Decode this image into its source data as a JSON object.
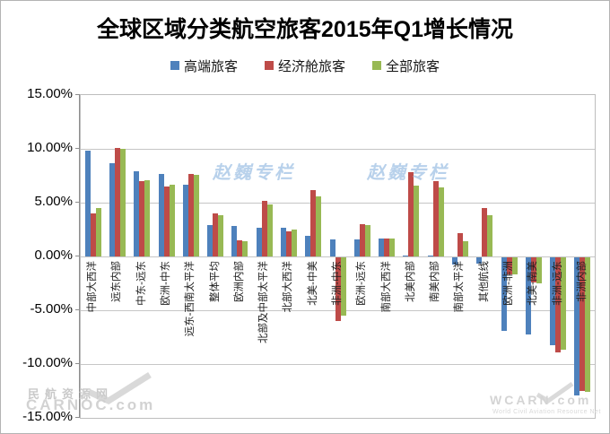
{
  "window": {
    "title": "全球区域分类航空旅客2015年Q1增长情况"
  },
  "chart_data": {
    "type": "bar",
    "title": "全球区域分类航空旅客2015年Q1增长情况",
    "xlabel": "",
    "ylabel": "",
    "ylim": [
      -15,
      15
    ],
    "y_step": 5,
    "grid": true,
    "legend_position": "top",
    "y_ticks": [
      "15.00%",
      "10.00%",
      "5.00%",
      "0.00%",
      "-5.00%",
      "-10.00%",
      "-15.00%"
    ],
    "categories": [
      "中部大西洋",
      "远东内部",
      "中东-远东",
      "欧洲-中东",
      "远东-西南太平洋",
      "整体平均",
      "欧洲内部",
      "北部及中部太平洋",
      "北部大西洋",
      "北美-中美",
      "非洲-中东",
      "欧洲-远东",
      "南部大西洋",
      "北美内部",
      "南美内部",
      "南部太平洋",
      "其他航线",
      "欧洲-非洲",
      "北美-南美",
      "非洲-远东",
      "非洲内部"
    ],
    "series": [
      {
        "name": "高端旅客",
        "color": "#4e81bc",
        "values": [
          9.8,
          8.7,
          7.9,
          7.7,
          6.7,
          2.9,
          2.8,
          2.7,
          2.7,
          1.9,
          1.6,
          1.6,
          1.7,
          0.1,
          0.1,
          -0.7,
          -0.6,
          -6.8,
          -7.2,
          -8.2,
          -12.8
        ]
      },
      {
        "name": "经济舱旅客",
        "color": "#be4b48",
        "values": [
          4.0,
          10.1,
          7.0,
          6.5,
          7.7,
          4.0,
          1.5,
          5.2,
          2.3,
          6.2,
          -5.9,
          3.0,
          1.7,
          7.8,
          7.0,
          2.2,
          4.5,
          -1.6,
          -2.3,
          -8.8,
          -12.4
        ]
      },
      {
        "name": "全部旅客",
        "color": "#98b954",
        "values": [
          4.5,
          10.0,
          7.1,
          6.7,
          7.6,
          3.8,
          1.4,
          4.8,
          2.5,
          5.6,
          -5.4,
          2.9,
          1.7,
          6.6,
          6.4,
          1.4,
          3.8,
          -1.6,
          -2.4,
          -8.6,
          -12.5
        ]
      }
    ]
  },
  "watermarks": {
    "column": "赵巍专栏",
    "carnoc_cn": "民航资源网",
    "carnoc_en": "CARNOC.com",
    "wcarn": "WCARN.com",
    "wcarn_sub": "World Civil Aviation Resource Net"
  }
}
